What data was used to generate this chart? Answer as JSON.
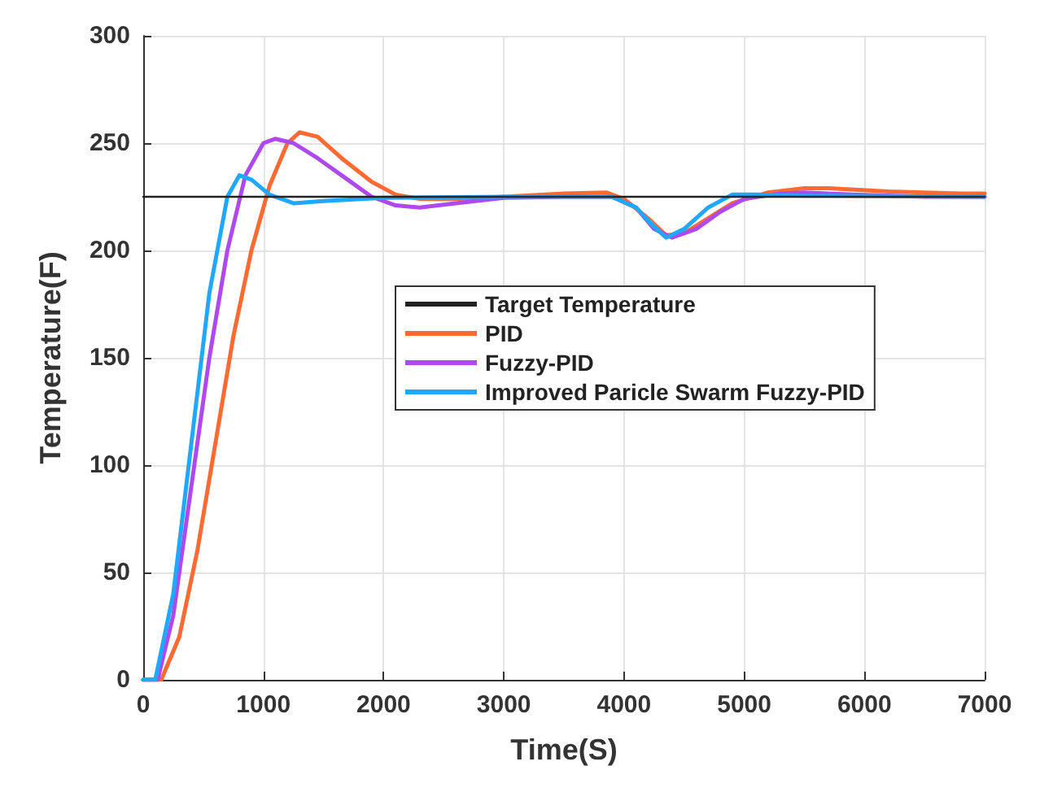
{
  "chart_data": {
    "type": "line",
    "xlabel": "Time(S)",
    "ylabel": "Temperature(F)",
    "xlim": [
      0,
      7000
    ],
    "xticks": [
      0,
      1000,
      2000,
      3000,
      4000,
      5000,
      6000,
      7000
    ],
    "ylim": [
      0,
      300
    ],
    "yticks": [
      0,
      50,
      100,
      150,
      200,
      250,
      300
    ],
    "grid": true,
    "legend": "right",
    "marker": "none",
    "line_style": "solid",
    "series": [
      {
        "name": "Target Temperature",
        "color": "#222222",
        "x": [
          0,
          7000
        ],
        "values": [
          225,
          225
        ]
      },
      {
        "name": "PID",
        "color": "#ff6a33",
        "x": [
          0,
          150,
          300,
          450,
          600,
          750,
          900,
          1050,
          1200,
          1300,
          1450,
          1650,
          1900,
          2100,
          2300,
          2600,
          3000,
          3500,
          3850,
          4000,
          4200,
          4350,
          4500,
          4700,
          4900,
          5200,
          5500,
          5700,
          6200,
          6800,
          7000
        ],
        "values": [
          0,
          0,
          20,
          60,
          110,
          160,
          200,
          230,
          250,
          255,
          253,
          243,
          232,
          226,
          224,
          224,
          225,
          226.5,
          227,
          224,
          215,
          207,
          208,
          215,
          222,
          227,
          229,
          229,
          227.5,
          226.5,
          226.5
        ]
      },
      {
        "name": "Fuzzy-PID",
        "color": "#b048f0",
        "x": [
          0,
          120,
          250,
          400,
          550,
          700,
          850,
          1000,
          1100,
          1250,
          1450,
          1700,
          1900,
          2100,
          2300,
          2600,
          3000,
          3500,
          3900,
          4100,
          4250,
          4400,
          4600,
          4800,
          5000,
          5300,
          5500,
          5900,
          6500,
          7000
        ],
        "values": [
          0,
          0,
          30,
          90,
          150,
          200,
          235,
          250,
          252,
          250,
          243,
          233,
          225,
          221,
          220,
          222,
          224.5,
          225,
          225,
          220,
          210,
          206,
          210,
          218,
          224,
          226.5,
          227,
          226,
          225,
          225
        ]
      },
      {
        "name": "Improved Paricle Swarm Fuzzy-PID",
        "color": "#1ea8ff",
        "x": [
          0,
          100,
          250,
          400,
          550,
          700,
          800,
          900,
          1050,
          1250,
          1500,
          2000,
          3000,
          3900,
          4100,
          4250,
          4350,
          4500,
          4700,
          4900,
          5100,
          5500,
          7000
        ],
        "values": [
          0,
          0,
          40,
          110,
          180,
          225,
          235,
          233,
          226,
          222,
          223,
          224.5,
          225,
          225,
          220,
          211,
          206,
          210,
          220,
          226,
          226,
          225.5,
          225
        ]
      }
    ]
  }
}
